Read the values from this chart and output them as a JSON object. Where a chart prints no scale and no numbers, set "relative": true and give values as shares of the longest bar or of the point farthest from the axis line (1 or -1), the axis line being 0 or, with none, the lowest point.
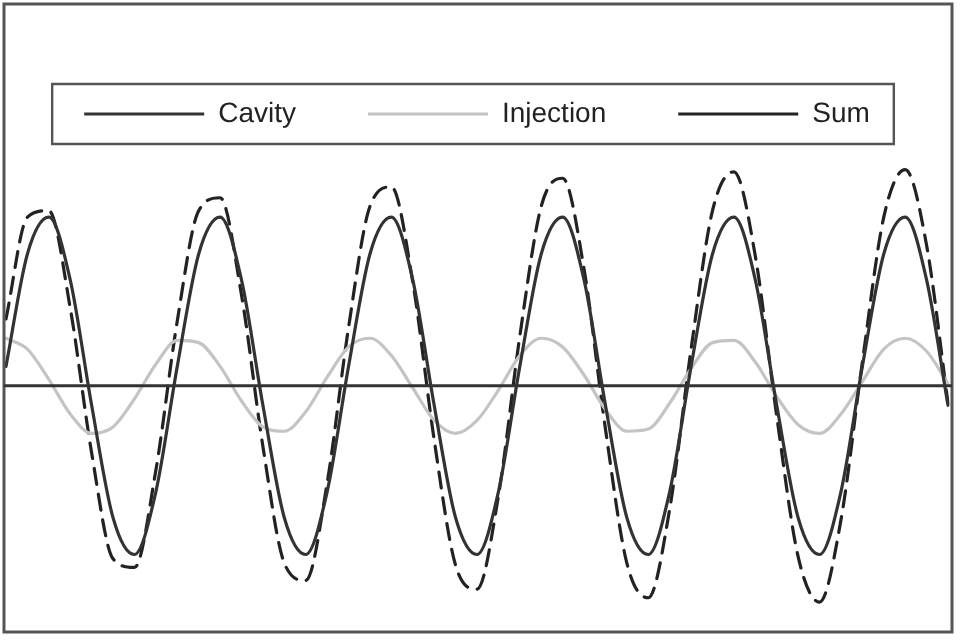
{
  "chart_data": {
    "type": "line",
    "relative": true,
    "legend": "top",
    "marker": "none",
    "categories": [
      null,
      null,
      null,
      null,
      null,
      null,
      null,
      null,
      null,
      null,
      null,
      null,
      null,
      null,
      null,
      null,
      null,
      null,
      null,
      null,
      null,
      null,
      null,
      null,
      null,
      null,
      null,
      null,
      null,
      null,
      null,
      null,
      null,
      null,
      null,
      null,
      null,
      null,
      null,
      null,
      null,
      null,
      null,
      null,
      null
    ],
    "series": [
      {
        "name": "Cavity",
        "color": "#333333",
        "line_style": "solid",
        "values": [
          0.09,
          0.61,
          0.78,
          0.49,
          -0.09,
          -0.61,
          -0.78,
          -0.49,
          0.09,
          0.61,
          0.78,
          0.49,
          -0.09,
          -0.61,
          -0.78,
          -0.49,
          0.09,
          0.61,
          0.78,
          0.49,
          -0.09,
          -0.61,
          -0.78,
          -0.49,
          0.09,
          0.61,
          0.78,
          0.49,
          -0.09,
          -0.61,
          -0.78,
          -0.49,
          0.09,
          0.61,
          0.78,
          0.49,
          -0.09,
          -0.61,
          -0.78,
          -0.49,
          0.09,
          0.61,
          0.78,
          0.49,
          -0.09
        ]
      },
      {
        "name": "Injection",
        "color": "#c4c4c4",
        "line_style": "solid",
        "values": [
          0.22,
          0.17,
          0.03,
          -0.13,
          -0.22,
          -0.19,
          -0.06,
          0.1,
          0.21,
          0.2,
          0.09,
          -0.07,
          -0.19,
          -0.21,
          -0.12,
          0.04,
          0.18,
          0.22,
          0.14,
          -0.01,
          -0.16,
          -0.22,
          -0.16,
          -0.02,
          0.14,
          0.22,
          0.18,
          0.05,
          -0.11,
          -0.21,
          -0.2,
          -0.08,
          0.08,
          0.2,
          0.21,
          0.11,
          -0.05,
          -0.18,
          -0.22,
          -0.13,
          0.02,
          0.17,
          0.22,
          0.16,
          0.01
        ]
      },
      {
        "name": "Sum",
        "color": "#222222",
        "line_style": "dashed",
        "values": [
          0.31,
          0.78,
          0.81,
          0.36,
          -0.31,
          -0.8,
          -0.84,
          -0.39,
          0.3,
          0.81,
          0.87,
          0.42,
          -0.28,
          -0.82,
          -0.9,
          -0.45,
          0.27,
          0.83,
          0.92,
          0.48,
          -0.25,
          -0.83,
          -0.94,
          -0.51,
          0.23,
          0.83,
          0.96,
          0.54,
          -0.2,
          -0.82,
          -0.98,
          -0.57,
          0.17,
          0.81,
          0.99,
          0.6,
          -0.14,
          -0.79,
          -1.0,
          -0.62,
          0.11,
          0.78,
          1.0,
          0.65,
          -0.08
        ]
      }
    ]
  }
}
